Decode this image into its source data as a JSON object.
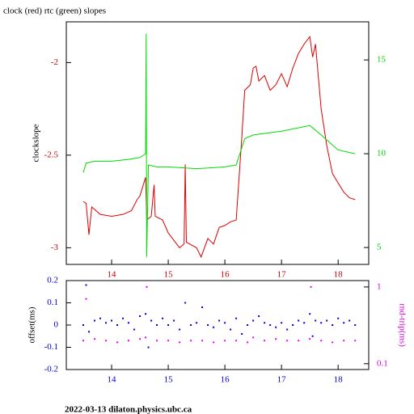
{
  "chart_data": [
    {
      "type": "line",
      "title": "clock (red) rtc (green) slopes",
      "ylabel": "clockslope",
      "xlim": [
        13.2,
        18.54
      ],
      "xticks": [
        14,
        15,
        16,
        17,
        18
      ],
      "ylim": [
        -3.09,
        -1.78
      ],
      "yticks": [
        -3,
        -2.5,
        -2
      ],
      "y2lim": [
        4.1,
        17.03
      ],
      "y2ticks": [
        5,
        10,
        15
      ],
      "xtick_color": "#cc0000",
      "ytick_color": "#cc0000",
      "y2tick_color": "#00cc00",
      "series": [
        {
          "name": "clock",
          "color": "#dd0000",
          "x": [
            13.5,
            13.55,
            13.6,
            13.65,
            13.8,
            14.0,
            14.2,
            14.35,
            14.45,
            14.5,
            14.55,
            14.6,
            14.62,
            14.7,
            14.75,
            14.77,
            14.9,
            15.0,
            15.2,
            15.28,
            15.3,
            15.32,
            15.5,
            15.58,
            15.7,
            15.8,
            15.9,
            16.0,
            16.1,
            16.2,
            16.3,
            16.35,
            16.45,
            16.5,
            16.55,
            16.6,
            16.7,
            16.8,
            16.9,
            17.0,
            17.1,
            17.2,
            17.3,
            17.4,
            17.5,
            17.55,
            17.6,
            17.7,
            17.8,
            17.9,
            18.0,
            18.1,
            18.2,
            18.3
          ],
          "values": [
            -2.75,
            -2.76,
            -2.93,
            -2.78,
            -2.82,
            -2.83,
            -2.82,
            -2.8,
            -2.74,
            -2.72,
            -2.67,
            -2.62,
            -2.85,
            -2.83,
            -2.66,
            -2.83,
            -2.85,
            -2.92,
            -3.0,
            -2.98,
            -2.55,
            -2.97,
            -3.0,
            -3.05,
            -2.95,
            -2.98,
            -2.89,
            -2.88,
            -2.86,
            -2.85,
            -2.4,
            -2.15,
            -2.12,
            -2.03,
            -2.02,
            -2.1,
            -2.07,
            -2.15,
            -2.12,
            -2.06,
            -2.13,
            -2.03,
            -1.95,
            -1.9,
            -1.86,
            -1.97,
            -1.9,
            -2.25,
            -2.45,
            -2.6,
            -2.65,
            -2.7,
            -2.73,
            -2.74
          ]
        },
        {
          "name": "rtc",
          "color": "#00dd00",
          "axis": "y2",
          "x": [
            13.5,
            13.55,
            13.7,
            14.0,
            14.3,
            14.5,
            14.6,
            14.61,
            14.62,
            14.65,
            14.8,
            15.0,
            15.5,
            16.0,
            16.2,
            16.35,
            16.5,
            17.0,
            17.5,
            17.7,
            18.0,
            18.3
          ],
          "values": [
            9.0,
            9.5,
            9.6,
            9.6,
            9.7,
            9.8,
            10.0,
            16.4,
            4.5,
            9.4,
            9.3,
            9.3,
            9.2,
            9.3,
            9.4,
            10.8,
            11.0,
            11.2,
            11.5,
            11.0,
            10.2,
            10.0
          ]
        }
      ]
    },
    {
      "type": "scatter",
      "ylabel": "offset(ms)",
      "y2label": "rnd-trip(ms)",
      "xlim": [
        13.2,
        18.54
      ],
      "xticks": [
        14,
        15,
        16,
        17,
        18
      ],
      "ylim": [
        -0.2,
        0.2
      ],
      "yticks": [
        -0.2,
        -0.1,
        0,
        0.1,
        0.2
      ],
      "y2lim": [
        0.084,
        1.21
      ],
      "y2ticks": [
        0.1,
        1
      ],
      "y2log": true,
      "xtick_color": "#0000cc",
      "ytick_color": "#0000cc",
      "y2tick_color": "#dd00dd",
      "series": [
        {
          "name": "offset",
          "color": "#0000dd",
          "x": [
            13.5,
            13.55,
            13.6,
            13.7,
            13.8,
            13.9,
            14.0,
            14.1,
            14.2,
            14.3,
            14.4,
            14.5,
            14.6,
            14.65,
            14.7,
            14.8,
            14.9,
            15.0,
            15.1,
            15.2,
            15.3,
            15.4,
            15.5,
            15.6,
            15.7,
            15.8,
            15.9,
            16.0,
            16.1,
            16.2,
            16.3,
            16.4,
            16.5,
            16.6,
            16.7,
            16.8,
            16.9,
            17.0,
            17.1,
            17.2,
            17.3,
            17.4,
            17.5,
            17.55,
            17.6,
            17.7,
            17.8,
            17.9,
            18.0,
            18.1,
            18.2,
            18.3
          ],
          "values": [
            0.0,
            0.18,
            -0.03,
            0.02,
            0.03,
            0.01,
            0.02,
            0.0,
            0.03,
            0.01,
            -0.02,
            0.04,
            0.05,
            -0.1,
            0.02,
            0.0,
            0.03,
            0.0,
            0.02,
            -0.02,
            0.1,
            0.0,
            0.01,
            0.08,
            0.0,
            -0.01,
            0.02,
            0.01,
            -0.02,
            0.03,
            -0.04,
            0.0,
            0.02,
            0.04,
            0.01,
            0.0,
            -0.01,
            0.01,
            -0.02,
            0.0,
            0.02,
            0.01,
            0.05,
            -0.05,
            0.02,
            0.01,
            0.02,
            0.0,
            0.03,
            0.01,
            0.02,
            0.0
          ]
        },
        {
          "name": "rnd-trip",
          "color": "#ee00ee",
          "axis": "y2",
          "x": [
            13.5,
            13.55,
            13.7,
            13.9,
            14.1,
            14.3,
            14.5,
            14.6,
            14.62,
            14.8,
            15.0,
            15.2,
            15.4,
            15.6,
            15.8,
            16.0,
            16.2,
            16.4,
            16.5,
            16.7,
            16.9,
            17.1,
            17.3,
            17.5,
            17.52,
            17.7,
            17.9,
            18.1,
            18.3
          ],
          "values": [
            0.2,
            0.7,
            0.21,
            0.2,
            0.19,
            0.2,
            0.21,
            0.22,
            1.0,
            0.2,
            0.2,
            0.19,
            0.2,
            0.2,
            0.19,
            0.2,
            0.2,
            0.19,
            0.22,
            0.2,
            0.21,
            0.2,
            0.2,
            0.21,
            1.0,
            0.2,
            0.19,
            0.2,
            0.2
          ]
        }
      ]
    }
  ],
  "footer": "2022-03-13 dilaton.physics.ubc.ca"
}
